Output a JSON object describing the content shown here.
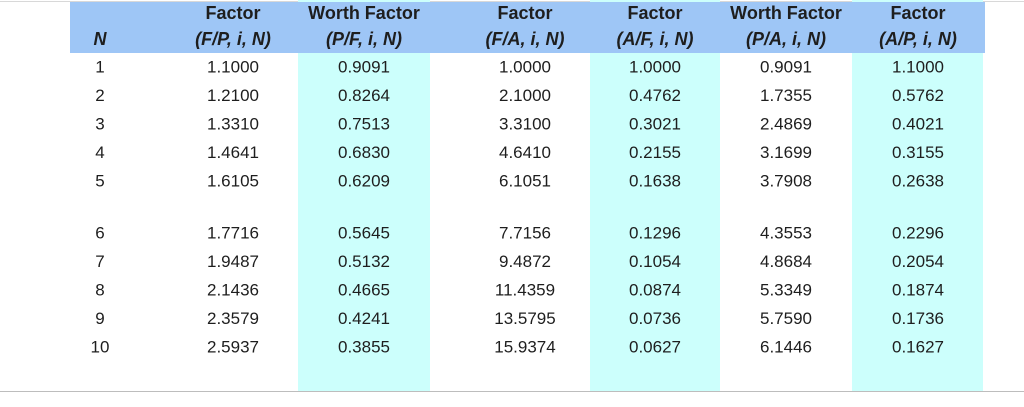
{
  "table": {
    "columns": [
      {
        "label": "N"
      },
      {
        "title": "Factor",
        "notation": "(F/P, i, N)"
      },
      {
        "title": "Worth Factor",
        "notation": "(P/F, i, N)"
      },
      {
        "title": "Factor",
        "notation": "(F/A, i, N)"
      },
      {
        "title": "Factor",
        "notation": "(A/F, i, N)"
      },
      {
        "title": "Worth Factor",
        "notation": "(P/A, i, N)"
      },
      {
        "title": "Factor",
        "notation": "(A/P, i, N)"
      }
    ],
    "rows": [
      [
        "1",
        "1.1000",
        "0.9091",
        "1.0000",
        "1.0000",
        "0.9091",
        "1.1000"
      ],
      [
        "2",
        "1.2100",
        "0.8264",
        "2.1000",
        "0.4762",
        "1.7355",
        "0.5762"
      ],
      [
        "3",
        "1.3310",
        "0.7513",
        "3.3100",
        "0.3021",
        "2.4869",
        "0.4021"
      ],
      [
        "4",
        "1.4641",
        "0.6830",
        "4.6410",
        "0.2155",
        "3.1699",
        "0.3155"
      ],
      [
        "5",
        "1.6105",
        "0.6209",
        "6.1051",
        "0.1638",
        "3.7908",
        "0.2638"
      ],
      [
        "6",
        "1.7716",
        "0.5645",
        "7.7156",
        "0.1296",
        "4.3553",
        "0.2296"
      ],
      [
        "7",
        "1.9487",
        "0.5132",
        "9.4872",
        "0.1054",
        "4.8684",
        "0.2054"
      ],
      [
        "8",
        "2.1436",
        "0.4665",
        "11.4359",
        "0.0874",
        "5.3349",
        "0.1874"
      ],
      [
        "9",
        "2.3579",
        "0.4241",
        "13.5795",
        "0.0736",
        "5.7590",
        "0.1736"
      ],
      [
        "10",
        "2.5937",
        "0.3855",
        "15.9374",
        "0.0627",
        "6.1446",
        "0.1627"
      ]
    ]
  }
}
